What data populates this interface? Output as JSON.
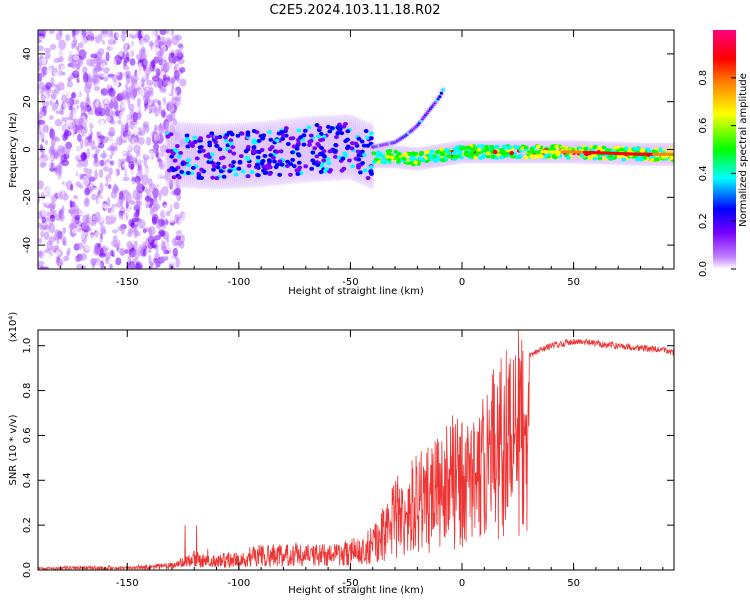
{
  "figure": {
    "title": "C2E5.2024.103.11.18.R02"
  },
  "chart_data": [
    {
      "type": "heatmap",
      "xlabel": "Height of straight line (km)",
      "ylabel": "Frequency (Hz)",
      "xlim": [
        -190,
        95
      ],
      "ylim": [
        -50,
        50
      ],
      "xticks": [
        -150,
        -100,
        -50,
        0,
        50
      ],
      "yticks": [
        -40,
        -20,
        0,
        20,
        40
      ],
      "colorbar": {
        "label": "Normalized spectral amplitude",
        "range": [
          0.0,
          1.0
        ],
        "ticks": [
          0.0,
          0.2,
          0.4,
          0.6,
          0.8
        ],
        "colormap": [
          "#ffffff",
          "#c080ff",
          "#7800ff",
          "#0000ff",
          "#00ffff",
          "#00ff00",
          "#ffff00",
          "#ff8000",
          "#ff0000",
          "#ff0080"
        ]
      },
      "features": {
        "main_band": {
          "x": [
            -130,
            -110,
            -90,
            -70,
            -50,
            -40,
            -30,
            -20,
            0,
            20,
            50,
            80,
            95
          ],
          "y": [
            -2,
            -3,
            -2,
            0,
            1,
            -3,
            -3,
            -4,
            -1,
            -1,
            -1,
            -2,
            -2
          ]
        },
        "rising_branch": {
          "x": [
            -40,
            -30,
            -25,
            -20,
            -15,
            -10,
            -8
          ],
          "y": [
            1,
            3,
            6,
            10,
            16,
            22,
            26
          ]
        }
      }
    },
    {
      "type": "line",
      "xlabel": "Height of straight line (km)",
      "ylabel": "SNR (10 * v/v)",
      "yscale_label": "(x10⁴)",
      "xlim": [
        -190,
        95
      ],
      "ylim": [
        0,
        1.07
      ],
      "xticks": [
        -150,
        -100,
        -50,
        0,
        50
      ],
      "yticks": [
        0.0,
        0.2,
        0.4,
        0.6,
        0.8,
        1.0
      ],
      "color": "#ee3333",
      "x": [
        -190,
        -170,
        -150,
        -140,
        -130,
        -125,
        -120,
        -115,
        -110,
        -100,
        -90,
        -80,
        -70,
        -60,
        -50,
        -45,
        -40,
        -35,
        -30,
        -25,
        -20,
        -15,
        -10,
        -5,
        0,
        5,
        10,
        15,
        20,
        25,
        30,
        35,
        40,
        50,
        60,
        70,
        80,
        90,
        95
      ],
      "y": [
        0.01,
        0.015,
        0.015,
        0.02,
        0.03,
        0.05,
        0.08,
        0.06,
        0.06,
        0.08,
        0.1,
        0.1,
        0.1,
        0.1,
        0.12,
        0.14,
        0.18,
        0.25,
        0.35,
        0.42,
        0.45,
        0.5,
        0.55,
        0.6,
        0.6,
        0.6,
        0.7,
        0.8,
        0.85,
        0.9,
        0.95,
        0.98,
        1.0,
        1.02,
        1.01,
        1.0,
        0.99,
        0.98,
        0.97
      ]
    }
  ]
}
